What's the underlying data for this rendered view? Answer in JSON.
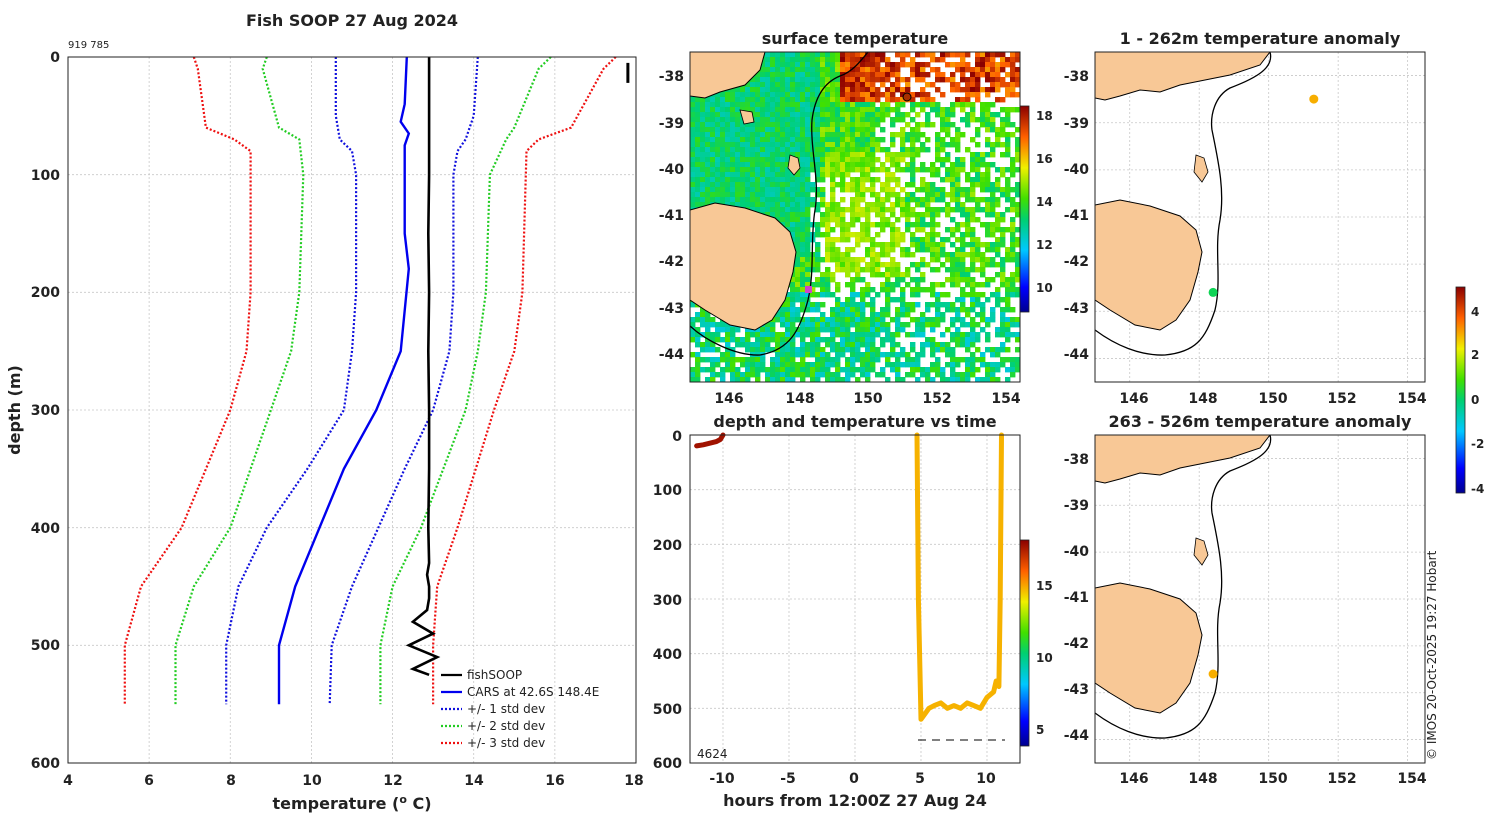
{
  "colors": {
    "fishsoop": "#000000",
    "cars": "#0000ee",
    "std1": "#1010dd",
    "std2": "#22cc22",
    "std3": "#ee1010",
    "land": "#f8c896",
    "track": "#d2f020",
    "track_early": "#a01000"
  },
  "profile": {
    "title": "Fish SOOP 27 Aug 2024",
    "cruise_id": "919 785",
    "xlabel": "temperature (",
    "xlabel_sup": "o",
    "xlabel_unit": " C)",
    "ylabel": "depth (m)",
    "x_ticks": [
      "4",
      "6",
      "8",
      "10",
      "12",
      "14",
      "16",
      "18"
    ],
    "y_ticks": [
      "0",
      "100",
      "200",
      "300",
      "400",
      "500",
      "600"
    ],
    "legend": [
      "fishSOOP",
      "CARS at 42.6S 148.4E",
      "+/- 1 std dev",
      "+/- 2 std dev",
      "+/- 3 std dev"
    ]
  },
  "sst_map": {
    "title": "surface temperature",
    "lon_ticks": [
      "146",
      "148",
      "150",
      "152",
      "154"
    ],
    "lat_ticks": [
      "-38",
      "-39",
      "-40",
      "-41",
      "-42",
      "-43",
      "-44"
    ],
    "colorbar_ticks": [
      "18",
      "16",
      "14",
      "12",
      "10"
    ]
  },
  "timeseries": {
    "title": "depth and temperature vs time",
    "xlabel": "hours from 12:00Z 27 Aug 24",
    "x_ticks": [
      "-10",
      "-5",
      "0",
      "5",
      "10"
    ],
    "y_ticks": [
      "0",
      "100",
      "200",
      "300",
      "400",
      "500",
      "600"
    ],
    "annotation": "4624",
    "colorbar_ticks": [
      "15",
      "10",
      "5"
    ]
  },
  "anom_top": {
    "title": "1 - 262m temperature anomaly",
    "lon_ticks": [
      "146",
      "148",
      "150",
      "152",
      "154"
    ],
    "lat_ticks": [
      "-38",
      "-39",
      "-40",
      "-41",
      "-42",
      "-43",
      "-44"
    ]
  },
  "anom_bottom": {
    "title": "263 - 526m temperature anomaly",
    "lon_ticks": [
      "146",
      "148",
      "150",
      "152",
      "154"
    ],
    "lat_ticks": [
      "-38",
      "-39",
      "-40",
      "-41",
      "-42",
      "-43",
      "-44"
    ]
  },
  "anom_colorbar": {
    "ticks": [
      "4",
      "2",
      "0",
      "-2",
      "-4"
    ]
  },
  "credit": "© IMOS 20-Oct-2025 19:27 Hobart",
  "chart_data": [
    {
      "type": "line",
      "title": "Fish SOOP 27 Aug 2024",
      "xlabel": "temperature (o C)",
      "ylabel": "depth (m)",
      "xlim": [
        4,
        18
      ],
      "ylim": [
        600,
        0
      ],
      "series": [
        {
          "name": "fishSOOP",
          "temp": [
            12.9,
            12.9,
            12.9,
            12.88,
            12.9,
            12.88,
            12.9,
            12.9,
            12.88,
            12.9,
            12.85,
            12.9,
            12.9,
            12.85,
            12.5,
            13.0,
            12.4,
            13.1,
            12.5,
            12.9
          ],
          "depth": [
            0,
            50,
            100,
            150,
            200,
            250,
            300,
            350,
            400,
            430,
            440,
            450,
            460,
            470,
            480,
            490,
            500,
            510,
            520,
            525
          ]
        },
        {
          "name": "CARS at 42.6S 148.4E",
          "temp": [
            12.35,
            12.3,
            12.2,
            12.4,
            12.3,
            12.3,
            12.3,
            12.4,
            12.2,
            11.6,
            10.8,
            10.2,
            9.6,
            9.2,
            9.2
          ],
          "depth": [
            0,
            40,
            55,
            65,
            75,
            100,
            150,
            180,
            250,
            300,
            350,
            400,
            450,
            500,
            550
          ]
        },
        {
          "name": "+/- 1 std dev",
          "temp": [
            10.6,
            10.6,
            10.7,
            11.0,
            11.1,
            11.1,
            11.0,
            10.8,
            9.9,
            8.9,
            8.2,
            7.9,
            7.9
          ],
          "depth": [
            0,
            50,
            70,
            80,
            100,
            200,
            250,
            300,
            350,
            400,
            450,
            500,
            550
          ]
        },
        {
          "name": "+/- 1 std dev",
          "temp": [
            14.1,
            14.0,
            13.8,
            13.6,
            13.5,
            13.5,
            13.4,
            13.0,
            12.3,
            11.0,
            10.5,
            10.45
          ],
          "depth": [
            0,
            50,
            70,
            80,
            100,
            200,
            250,
            300,
            350,
            450,
            500,
            550
          ]
        },
        {
          "name": "+/- 2 std dev",
          "temp": [
            8.9,
            8.8,
            9.2,
            9.7,
            9.8,
            9.7,
            9.5,
            9.0,
            8.0,
            7.1,
            6.65,
            6.65
          ],
          "depth": [
            0,
            10,
            60,
            70,
            100,
            200,
            250,
            300,
            400,
            450,
            500,
            550
          ]
        },
        {
          "name": "+/- 2 std dev",
          "temp": [
            15.9,
            15.6,
            15.0,
            14.8,
            14.4,
            14.3,
            14.1,
            13.8,
            12.7,
            12.0,
            11.7,
            11.7
          ],
          "depth": [
            0,
            10,
            60,
            70,
            100,
            200,
            250,
            300,
            400,
            450,
            500,
            550
          ]
        },
        {
          "name": "+/- 3 std dev",
          "temp": [
            7.1,
            7.2,
            7.4,
            8.1,
            8.5,
            8.5,
            8.4,
            8.0,
            6.8,
            5.8,
            5.4,
            5.4
          ],
          "depth": [
            0,
            10,
            60,
            70,
            80,
            200,
            250,
            300,
            400,
            450,
            500,
            550
          ]
        },
        {
          "name": "+/- 3 std dev",
          "temp": [
            17.5,
            17.2,
            16.4,
            15.6,
            15.3,
            15.2,
            15.0,
            14.5,
            13.6,
            13.1,
            13.0,
            13.0
          ],
          "depth": [
            0,
            10,
            60,
            70,
            80,
            200,
            250,
            300,
            400,
            450,
            500,
            550
          ]
        }
      ]
    },
    {
      "type": "line",
      "title": "depth and temperature vs time",
      "xlabel": "hours from 12:00Z 27 Aug 24",
      "ylabel": "",
      "xlim": [
        -12.5,
        12.5
      ],
      "ylim": [
        600,
        0
      ],
      "colorbar_range": [
        4,
        18
      ],
      "series": [
        {
          "name": "early segment",
          "x": [
            -12,
            -11.5,
            -11,
            -10.5,
            -10.2,
            -10
          ],
          "y": [
            20,
            18,
            15,
            12,
            8,
            0
          ],
          "temp": [
            17.6,
            17.6,
            17.6,
            17.6,
            17.6,
            17.6
          ]
        },
        {
          "name": "late segment",
          "x": [
            4.7,
            4.8,
            5.0,
            5.3,
            5.6,
            6,
            6.5,
            7,
            7.5,
            8,
            8.5,
            9,
            9.5,
            10,
            10.5,
            10.7,
            10.9,
            11.0,
            11.1
          ],
          "y": [
            0,
            300,
            520,
            510,
            500,
            495,
            490,
            500,
            495,
            500,
            490,
            495,
            500,
            480,
            470,
            450,
            460,
            300,
            0
          ],
          "temp": [
            14.7,
            14.7,
            14.7,
            14.7,
            14.7,
            14.7,
            14.7,
            14.7,
            14.7,
            14.7,
            14.7,
            14.7,
            14.7,
            14.7,
            14.7,
            14.7,
            14.7,
            14.7,
            14.7
          ]
        }
      ]
    },
    {
      "type": "scatter",
      "title": "1 - 262m temperature anomaly",
      "xlim": [
        145,
        154.5
      ],
      "ylim": [
        -44.5,
        -37.5
      ],
      "points": [
        {
          "lon": 151.3,
          "lat": -38.5,
          "anomaly": 2.8
        },
        {
          "lon": 148.4,
          "lat": -42.6,
          "anomaly": 0.0
        }
      ]
    },
    {
      "type": "scatter",
      "title": "263 - 526m temperature anomaly",
      "xlim": [
        145,
        154.5
      ],
      "ylim": [
        -44.5,
        -37.5
      ],
      "points": [
        {
          "lon": 148.4,
          "lat": -42.6,
          "anomaly": 2.8
        }
      ]
    }
  ]
}
